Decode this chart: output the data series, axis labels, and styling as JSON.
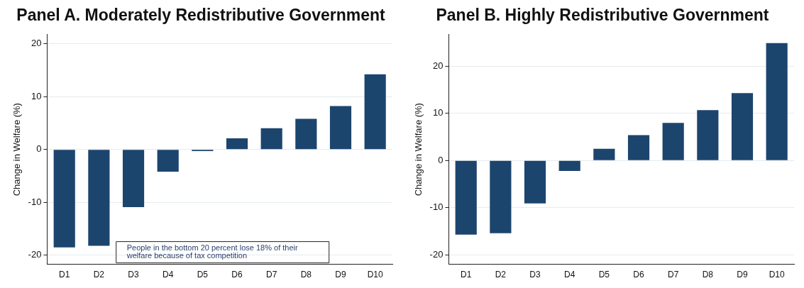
{
  "chart_data": [
    {
      "type": "bar",
      "title": "Panel A. Moderately Redistributive Government",
      "ylabel": "Change in Welfare (%)",
      "categories": [
        "D1",
        "D2",
        "D3",
        "D4",
        "D5",
        "D6",
        "D7",
        "D8",
        "D9",
        "D10"
      ],
      "values": [
        -18.5,
        -18.2,
        -10.9,
        -4.2,
        -0.3,
        2.1,
        4.0,
        5.8,
        8.2,
        14.2
      ],
      "color": "#1c456e",
      "ylim": [
        -21.7,
        21.7
      ],
      "yticks": [
        -20,
        -10,
        0,
        10,
        20
      ],
      "grid": "y",
      "annotations": [
        "People in the bottom 20 percent lose 18% of their welfare because of tax competition"
      ]
    },
    {
      "type": "bar",
      "title": "Panel B. Highly Redistributive Government",
      "ylabel": "Change in Welfare (%)",
      "categories": [
        "D1",
        "D2",
        "D3",
        "D4",
        "D5",
        "D6",
        "D7",
        "D8",
        "D9",
        "D10"
      ],
      "values": [
        -15.7,
        -15.4,
        -9.1,
        -2.2,
        2.5,
        5.4,
        8.0,
        10.7,
        14.3,
        24.9
      ],
      "color": "#1c456e",
      "ylim": [
        -22.0,
        26.7
      ],
      "yticks": [
        -20,
        -10,
        0,
        10,
        20
      ],
      "grid": "y"
    }
  ]
}
